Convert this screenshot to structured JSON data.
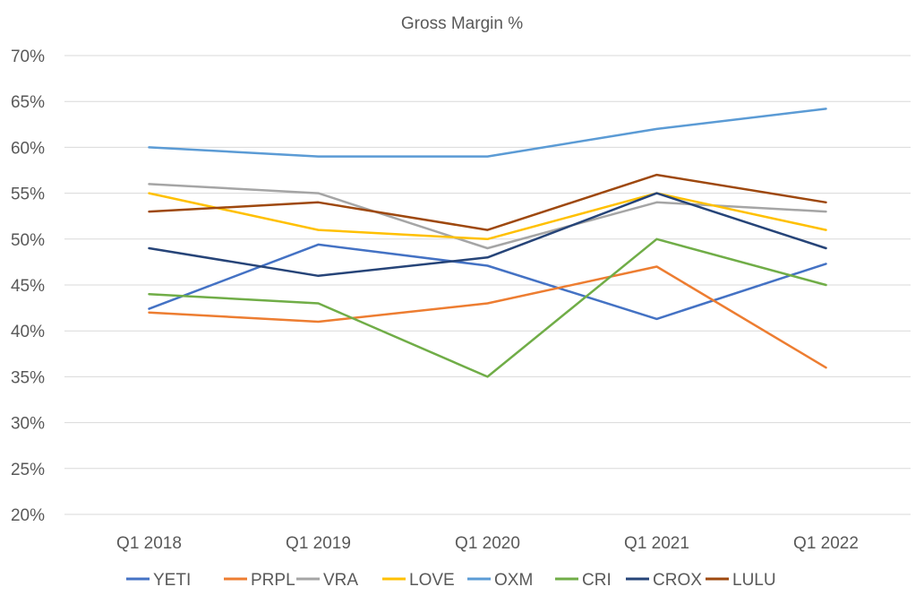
{
  "chart_data": {
    "type": "line",
    "title": "Gross Margin %",
    "xlabel": "",
    "ylabel": "",
    "categories": [
      "Q1 2018",
      "Q1 2019",
      "Q1 2020",
      "Q1 2021",
      "Q1 2022"
    ],
    "y_ticks": [
      "20%",
      "25%",
      "30%",
      "35%",
      "40%",
      "45%",
      "50%",
      "55%",
      "60%",
      "65%",
      "70%"
    ],
    "ylim": [
      20,
      70
    ],
    "grid": true,
    "legend_position": "bottom",
    "series": [
      {
        "name": "YETI",
        "color": "#4472c4",
        "values": [
          42.4,
          49.4,
          47.1,
          41.3,
          47.3
        ]
      },
      {
        "name": "PRPL",
        "color": "#ed7d31",
        "values": [
          42,
          41,
          43,
          47,
          36
        ]
      },
      {
        "name": "VRA",
        "color": "#a5a5a5",
        "values": [
          56,
          55,
          49,
          54,
          53
        ]
      },
      {
        "name": "LOVE",
        "color": "#ffc000",
        "values": [
          55,
          51,
          50,
          55,
          51
        ]
      },
      {
        "name": "OXM",
        "color": "#5b9bd5",
        "values": [
          60,
          59,
          59,
          62,
          64.2
        ]
      },
      {
        "name": "CRI",
        "color": "#70ad47",
        "values": [
          44,
          43,
          35,
          50,
          45
        ]
      },
      {
        "name": "CROX",
        "color": "#264478",
        "values": [
          49,
          46,
          48,
          55,
          49
        ]
      },
      {
        "name": "LULU",
        "color": "#9e480e",
        "values": [
          53,
          54,
          51,
          57,
          54
        ]
      }
    ]
  }
}
